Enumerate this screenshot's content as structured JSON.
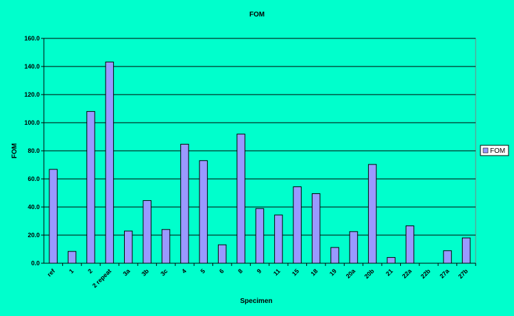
{
  "chart_data": {
    "type": "bar",
    "title": "FOM",
    "xlabel": "Specimen",
    "ylabel": "FOM",
    "ylim": [
      0,
      160
    ],
    "ytick_step": 20,
    "ytick_labels": [
      "0.0",
      "20.0",
      "40.0",
      "60.0",
      "80.0",
      "100.0",
      "120.0",
      "140.0",
      "160.0"
    ],
    "grid": true,
    "legend_position": "right",
    "categories": [
      "ref",
      "1",
      "2",
      "2 repeat",
      "3a",
      "3b",
      "3c",
      "4",
      "5",
      "6",
      "8",
      "9",
      "11",
      "15",
      "18",
      "19",
      "20a",
      "20b",
      "21",
      "22a",
      "22b",
      "27a",
      "27b"
    ],
    "series": [
      {
        "name": "FOM",
        "values": [
          66.8,
          8.4,
          108.0,
          143.2,
          22.9,
          44.6,
          24.0,
          84.7,
          73.0,
          13.1,
          91.9,
          38.9,
          34.3,
          54.4,
          49.5,
          11.2,
          22.5,
          70.3,
          4.1,
          26.6,
          0,
          8.9,
          18.0
        ]
      }
    ],
    "colors": {
      "background": "#00FFCC",
      "bar_fill": "#9999FF",
      "bar_stroke": "#000000",
      "grid": "#000000"
    }
  }
}
